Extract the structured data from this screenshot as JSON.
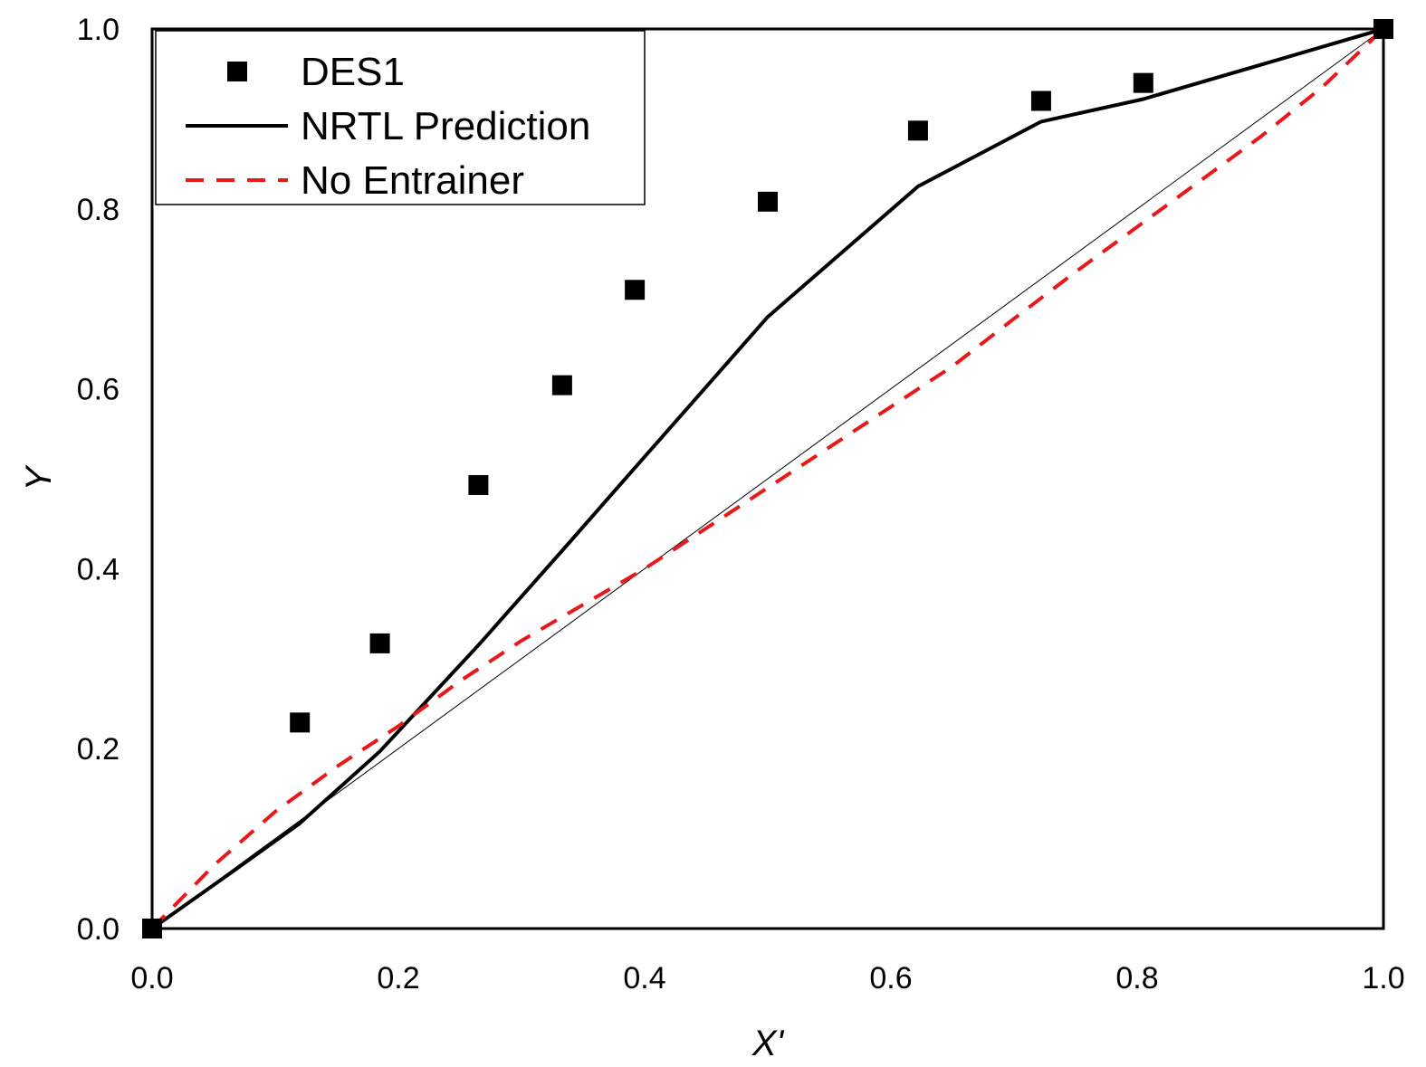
{
  "chart_data": {
    "type": "line",
    "title": "",
    "xlabel": "X'",
    "ylabel": "Y",
    "xlim": [
      0,
      1
    ],
    "ylim": [
      0,
      1
    ],
    "grid": false,
    "legend_placement": "top-left",
    "xticks": [
      "0.0",
      "0.2",
      "0.4",
      "0.6",
      "0.8",
      "1.0"
    ],
    "yticks": [
      "0.0",
      "0.2",
      "0.4",
      "0.6",
      "0.8",
      "1.0"
    ],
    "series": [
      {
        "name": "DES1",
        "style": "square-markers",
        "color": "#000000",
        "points": [
          [
            0.0,
            0.0
          ],
          [
            0.12,
            0.229
          ],
          [
            0.185,
            0.317
          ],
          [
            0.265,
            0.493
          ],
          [
            0.333,
            0.604
          ],
          [
            0.392,
            0.71
          ],
          [
            0.5,
            0.808
          ],
          [
            0.622,
            0.887
          ],
          [
            0.722,
            0.92
          ],
          [
            0.805,
            0.94
          ],
          [
            1.0,
            1.0
          ]
        ]
      },
      {
        "name": "NRTL Prediction",
        "style": "solid",
        "color": "#000000",
        "points": [
          [
            0.0,
            0.0
          ],
          [
            0.06,
            0.058
          ],
          [
            0.12,
            0.117
          ],
          [
            0.185,
            0.197
          ],
          [
            0.265,
            0.315
          ],
          [
            0.333,
            0.42
          ],
          [
            0.392,
            0.512
          ],
          [
            0.5,
            0.68
          ],
          [
            0.622,
            0.825
          ],
          [
            0.722,
            0.897
          ],
          [
            0.805,
            0.922
          ],
          [
            1.0,
            1.0
          ]
        ]
      },
      {
        "name": "No Entrainer",
        "style": "dashed",
        "color": "#e8191b",
        "points": [
          [
            0.0,
            0.0
          ],
          [
            0.05,
            0.07
          ],
          [
            0.1,
            0.13
          ],
          [
            0.15,
            0.18
          ],
          [
            0.2,
            0.225
          ],
          [
            0.25,
            0.275
          ],
          [
            0.3,
            0.32
          ],
          [
            0.35,
            0.36
          ],
          [
            0.4,
            0.4
          ],
          [
            0.45,
            0.445
          ],
          [
            0.5,
            0.49
          ],
          [
            0.55,
            0.535
          ],
          [
            0.6,
            0.58
          ],
          [
            0.65,
            0.625
          ],
          [
            0.7,
            0.678
          ],
          [
            0.75,
            0.73
          ],
          [
            0.8,
            0.78
          ],
          [
            0.85,
            0.83
          ],
          [
            0.9,
            0.88
          ],
          [
            0.95,
            0.935
          ],
          [
            1.0,
            1.0
          ]
        ]
      },
      {
        "name": "diagonal",
        "style": "thin-reference",
        "color": "#000000",
        "in_legend": false,
        "points": [
          [
            0.0,
            0.0
          ],
          [
            1.0,
            1.0
          ]
        ]
      }
    ],
    "legend": {
      "entries": [
        {
          "series": "DES1",
          "label": "DES1"
        },
        {
          "series": "NRTL Prediction",
          "label": "NRTL Prediction"
        },
        {
          "series": "No Entrainer",
          "label": "No Entrainer"
        }
      ]
    }
  }
}
